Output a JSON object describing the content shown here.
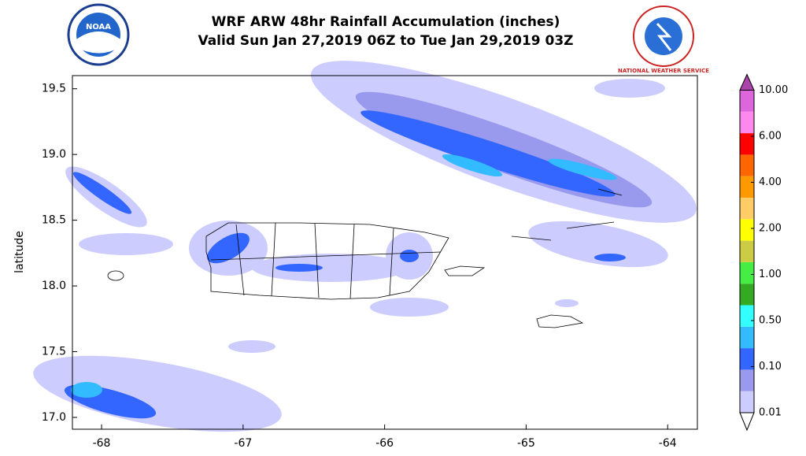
{
  "chart_data": {
    "type": "map",
    "title": "WRF ARW 48hr Rainfall Accumulation (inches)",
    "subtitle": "Valid Sun Jan 27,2019 06Z to Tue Jan 29,2019 03Z",
    "logos": {
      "left": "NOAA",
      "right": "NATIONAL WEATHER SERVICE"
    },
    "ylabel": "latitude",
    "xlim": [
      -68.206,
      -63.79
    ],
    "ylim": [
      16.91,
      19.6
    ],
    "xticks": [
      -68,
      -67,
      -66,
      -65,
      -64
    ],
    "yticks": [
      {
        "value": 17,
        "label": "17.0"
      },
      17.5,
      {
        "value": 18,
        "label": "18.0"
      },
      18.5,
      {
        "value": 19,
        "label": "19.0"
      },
      19.5
    ],
    "colorbar": {
      "ticks": [
        0.01,
        {
          "value": 0.1,
          "label": "0.10"
        },
        {
          "value": 0.5,
          "label": "0.50"
        },
        {
          "value": 1,
          "label": "1.00"
        },
        {
          "value": 2,
          "label": "2.00"
        },
        {
          "value": 4,
          "label": "4.00"
        },
        {
          "value": 6,
          "label": "6.00"
        },
        {
          "value": 10,
          "label": "10.00"
        }
      ],
      "colors": [
        "#ccccff",
        "#9999ee",
        "#3366ff",
        "#33bbff",
        "#33ffff",
        "#33aa22",
        "#44ee44",
        "#cccc44",
        "#ffff00",
        "#ffcc66",
        "#ff9900",
        "#ff6600",
        "#ff0000",
        "#ff88ee",
        "#dd66dd"
      ],
      "over_color": "#aa44aa",
      "under_color": "#ffffff"
    }
  }
}
